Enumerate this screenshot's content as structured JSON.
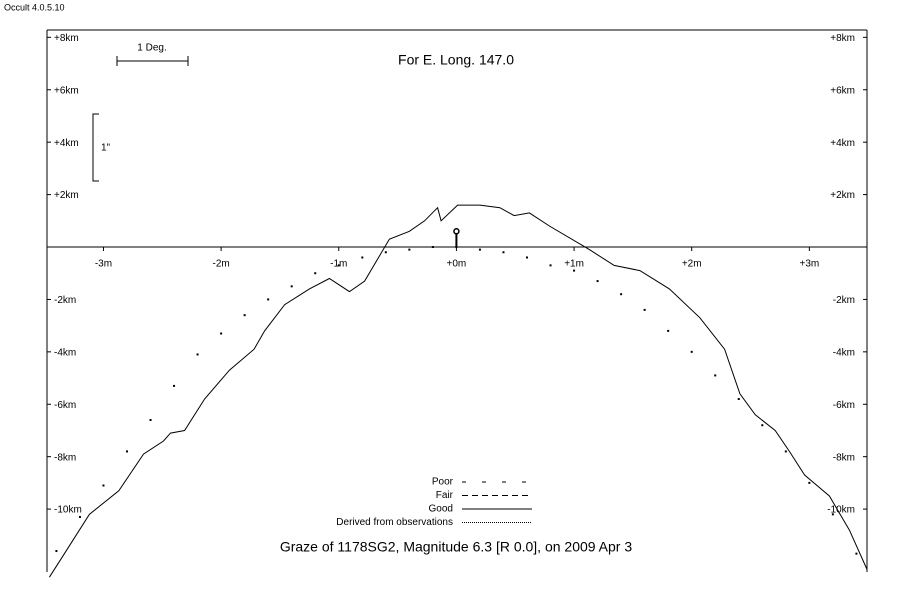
{
  "window_title": "Occult 4.0.5.10",
  "annotations": {
    "scale_degree": "1 Deg.",
    "scale_arcsec": "1\""
  },
  "chart_data": {
    "type": "line",
    "title": "Graze of  1178SG2,  Magnitude 6.3 [R 0.0],  on 2009 Apr  3",
    "subtitle": "For E. Long. 147.0",
    "xlim": [
      -3.48,
      3.49
    ],
    "ylim": [
      -12.4,
      8.28
    ],
    "xticks": [
      {
        "value": -3,
        "label": "-3m"
      },
      {
        "value": -2,
        "label": "-2m"
      },
      {
        "value": -1,
        "label": "-1m"
      },
      {
        "value": 0,
        "label": "+0m"
      },
      {
        "value": 1,
        "label": "+1m"
      },
      {
        "value": 2,
        "label": "+2m"
      },
      {
        "value": 3,
        "label": "+3m"
      }
    ],
    "yticks": [
      {
        "value": 8,
        "label": "+8km"
      },
      {
        "value": 6,
        "label": "+6km"
      },
      {
        "value": 4,
        "label": "+4km"
      },
      {
        "value": 2,
        "label": "+2km"
      },
      {
        "value": -2,
        "label": "-2km"
      },
      {
        "value": -4,
        "label": "-4km"
      },
      {
        "value": -6,
        "label": "-6km"
      },
      {
        "value": -8,
        "label": "-8km"
      },
      {
        "value": -10,
        "label": "-10km"
      }
    ],
    "star": {
      "x": 0,
      "y": 0.6
    },
    "legend": [
      {
        "name": "Poor",
        "dash": "4 16"
      },
      {
        "name": "Fair",
        "dash": "6 4"
      },
      {
        "name": "Good",
        "dash": "none"
      },
      {
        "name": "Derived from observations",
        "dash": "1 1"
      }
    ],
    "series": [
      {
        "name": "Good",
        "color": "#000000",
        "style": "line",
        "x": [
          -3.46,
          -3.29,
          -3.12,
          -2.87,
          -2.66,
          -2.49,
          -2.43,
          -2.31,
          -2.14,
          -1.93,
          -1.72,
          -1.63,
          -1.46,
          -1.25,
          -1.08,
          -0.91,
          -0.78,
          -0.57,
          -0.4,
          -0.27,
          -0.16,
          -0.13,
          0.01,
          0.2,
          0.37,
          0.49,
          0.62,
          0.79,
          1.13,
          1.34,
          1.56,
          1.81,
          2.07,
          2.28,
          2.41,
          2.54,
          2.71,
          2.83,
          2.96,
          3.17,
          3.34,
          3.49
        ],
        "values": [
          -12.6,
          -11.4,
          -10.2,
          -9.3,
          -7.9,
          -7.4,
          -7.1,
          -7.0,
          -5.8,
          -4.7,
          -3.9,
          -3.2,
          -2.2,
          -1.6,
          -1.2,
          -1.7,
          -1.3,
          0.3,
          0.6,
          1.0,
          1.5,
          1.0,
          1.6,
          1.6,
          1.5,
          1.2,
          1.3,
          0.8,
          -0.1,
          -0.7,
          -0.9,
          -1.6,
          -2.7,
          -3.9,
          -5.6,
          -6.4,
          -7.0,
          -7.8,
          -8.7,
          -9.5,
          -10.8,
          -12.3
        ]
      },
      {
        "color": "#000000",
        "style": "dots",
        "x": [
          -3.4,
          -3.2,
          -3.0,
          -2.8,
          -2.6,
          -2.4,
          -2.2,
          -2.0,
          -1.8,
          -1.6,
          -1.4,
          -1.2,
          -1.0,
          -0.8,
          -0.6,
          -0.4,
          -0.2,
          0,
          0.2,
          0.4,
          0.6,
          0.8,
          1.0,
          1.2,
          1.4,
          1.6,
          1.8,
          2.0,
          2.2,
          2.4,
          2.6,
          2.8,
          3.0,
          3.2,
          3.4
        ],
        "values": [
          -11.6,
          -10.3,
          -9.1,
          -7.8,
          -6.6,
          -5.3,
          -4.1,
          -3.3,
          -2.6,
          -2.0,
          -1.5,
          -1.0,
          -0.7,
          -0.4,
          -0.2,
          -0.1,
          0,
          0,
          -0.1,
          -0.2,
          -0.4,
          -0.7,
          -0.9,
          -1.3,
          -1.8,
          -2.4,
          -3.2,
          -4.0,
          -4.9,
          -5.8,
          -6.8,
          -7.8,
          -9.0,
          -10.2,
          -11.7
        ]
      }
    ]
  }
}
